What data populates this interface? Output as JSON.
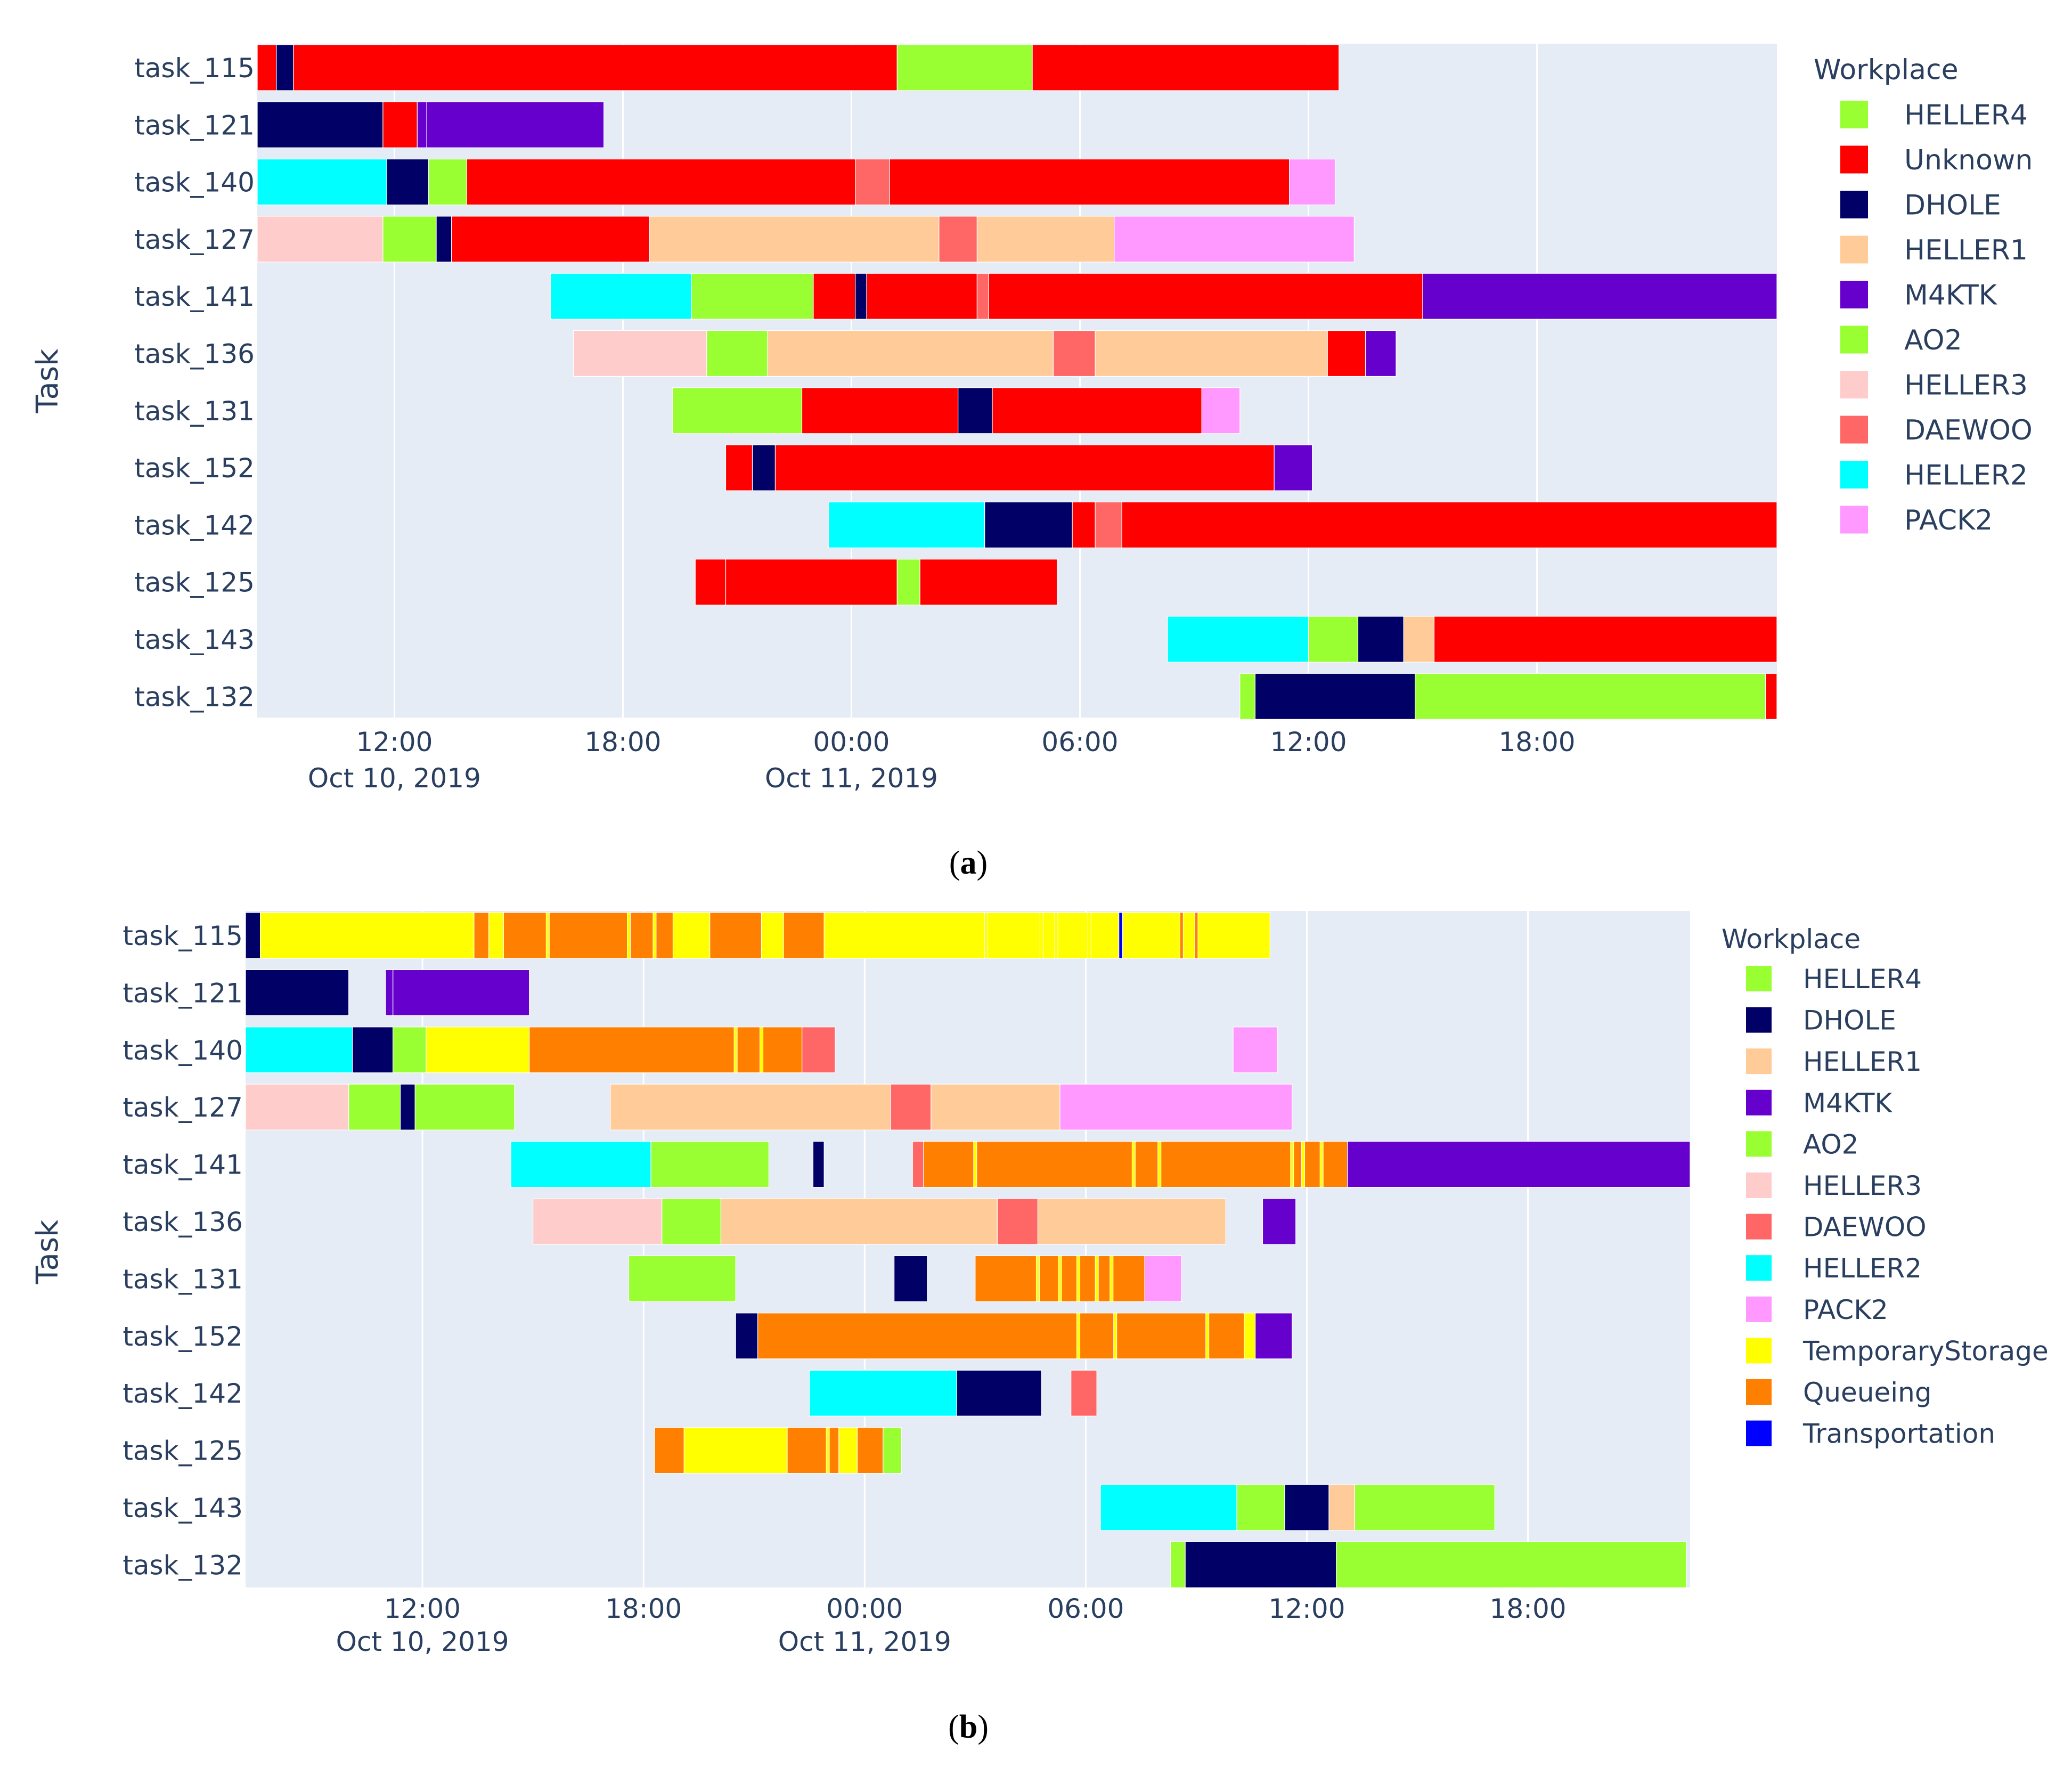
{
  "chart_data": [
    {
      "panel": "a",
      "caption_letter": "a",
      "type": "gantt",
      "ylabel": "Task",
      "legend_title": "Workplace",
      "legend_position": "right",
      "x_axis_ref": "Oct 10, 2019 06:00",
      "x_range_hours": [
        2.4,
        42.3
      ],
      "tick_labels": [
        {
          "hour": 6,
          "label": "12:00",
          "date": "Oct 10, 2019"
        },
        {
          "hour": 12,
          "label": "18:00",
          "date": ""
        },
        {
          "hour": 18,
          "label": "00:00",
          "date": "Oct 11, 2019"
        },
        {
          "hour": 24,
          "label": "06:00",
          "date": ""
        },
        {
          "hour": 30,
          "label": "12:00",
          "date": ""
        },
        {
          "hour": 36,
          "label": "18:00",
          "date": ""
        }
      ],
      "categories": [
        "task_115",
        "task_121",
        "task_140",
        "task_127",
        "task_141",
        "task_136",
        "task_131",
        "task_152",
        "task_142",
        "task_125",
        "task_143",
        "task_132"
      ],
      "legend": [
        {
          "name": "HELLER4",
          "color": "#99ff33"
        },
        {
          "name": "Unknown",
          "color": "#ff0000"
        },
        {
          "name": "DHOLE",
          "color": "#000066"
        },
        {
          "name": "HELLER1",
          "color": "#ffcc99"
        },
        {
          "name": "M4KTK",
          "color": "#6600cc"
        },
        {
          "name": "AO2",
          "color": "#99ff33"
        },
        {
          "name": "HELLER3",
          "color": "#ffcccc"
        },
        {
          "name": "DAEWOO",
          "color": "#ff6666"
        },
        {
          "name": "HELLER2",
          "color": "#00ffff"
        },
        {
          "name": "PACK2",
          "color": "#ff99ff"
        }
      ],
      "segments": {
        "task_115": [
          [
            2.4,
            2.9,
            "Unknown"
          ],
          [
            2.9,
            3.35,
            "DHOLE"
          ],
          [
            3.35,
            19.2,
            "Unknown"
          ],
          [
            19.2,
            22.75,
            "AO2"
          ],
          [
            22.75,
            30.8,
            "Unknown"
          ]
        ],
        "task_121": [
          [
            2.4,
            5.7,
            "DHOLE"
          ],
          [
            5.7,
            6.6,
            "Unknown"
          ],
          [
            6.6,
            6.85,
            "M4KTK"
          ],
          [
            6.85,
            11.5,
            "M4KTK"
          ]
        ],
        "task_140": [
          [
            2.4,
            5.8,
            "HELLER2"
          ],
          [
            5.8,
            6.9,
            "DHOLE"
          ],
          [
            6.9,
            7.9,
            "AO2"
          ],
          [
            7.9,
            18.1,
            "Unknown"
          ],
          [
            18.1,
            19.0,
            "DAEWOO"
          ],
          [
            19.0,
            29.5,
            "Unknown"
          ],
          [
            29.5,
            30.7,
            "PACK2"
          ]
        ],
        "task_127": [
          [
            2.4,
            5.7,
            "HELLER3"
          ],
          [
            5.7,
            7.1,
            "AO2"
          ],
          [
            7.1,
            7.5,
            "DHOLE"
          ],
          [
            7.5,
            12.7,
            "Unknown"
          ],
          [
            12.7,
            20.3,
            "HELLER1"
          ],
          [
            20.3,
            21.3,
            "DAEWOO"
          ],
          [
            21.3,
            24.9,
            "HELLER1"
          ],
          [
            24.9,
            31.2,
            "PACK2"
          ]
        ],
        "task_141": [
          [
            10.1,
            13.8,
            "HELLER2"
          ],
          [
            13.8,
            17.0,
            "AO2"
          ],
          [
            17.0,
            18.1,
            "Unknown"
          ],
          [
            18.1,
            18.4,
            "DHOLE"
          ],
          [
            18.4,
            21.3,
            "Unknown"
          ],
          [
            21.3,
            21.6,
            "DAEWOO"
          ],
          [
            21.6,
            33.0,
            "Unknown"
          ],
          [
            33.0,
            42.3,
            "M4KTK"
          ]
        ],
        "task_136": [
          [
            10.7,
            14.2,
            "HELLER3"
          ],
          [
            14.2,
            15.8,
            "AO2"
          ],
          [
            15.8,
            23.3,
            "HELLER1"
          ],
          [
            23.3,
            24.4,
            "DAEWOO"
          ],
          [
            24.4,
            30.5,
            "HELLER1"
          ],
          [
            30.5,
            31.5,
            "Unknown"
          ],
          [
            31.5,
            32.3,
            "M4KTK"
          ]
        ],
        "task_131": [
          [
            13.3,
            16.7,
            "AO2"
          ],
          [
            16.7,
            20.8,
            "Unknown"
          ],
          [
            20.8,
            21.7,
            "DHOLE"
          ],
          [
            21.7,
            27.2,
            "Unknown"
          ],
          [
            27.2,
            28.2,
            "PACK2"
          ]
        ],
        "task_152": [
          [
            14.7,
            15.4,
            "Unknown"
          ],
          [
            15.4,
            16.0,
            "DHOLE"
          ],
          [
            16.0,
            29.1,
            "Unknown"
          ],
          [
            29.1,
            30.1,
            "M4KTK"
          ]
        ],
        "task_142": [
          [
            17.4,
            21.5,
            "HELLER2"
          ],
          [
            21.5,
            23.8,
            "DHOLE"
          ],
          [
            23.8,
            24.4,
            "Unknown"
          ],
          [
            24.4,
            25.1,
            "DAEWOO"
          ],
          [
            25.1,
            42.3,
            "Unknown"
          ]
        ],
        "task_125": [
          [
            13.9,
            14.7,
            "Unknown"
          ],
          [
            14.7,
            19.2,
            "Unknown"
          ],
          [
            19.2,
            19.8,
            "AO2"
          ],
          [
            19.8,
            23.4,
            "Unknown"
          ]
        ],
        "task_143": [
          [
            26.3,
            30.0,
            "HELLER2"
          ],
          [
            30.0,
            31.3,
            "AO2"
          ],
          [
            31.3,
            32.5,
            "DHOLE"
          ],
          [
            32.5,
            33.3,
            "HELLER1"
          ],
          [
            33.3,
            42.3,
            "Unknown"
          ]
        ],
        "task_132": [
          [
            28.2,
            28.6,
            "AO2"
          ],
          [
            28.6,
            32.8,
            "DHOLE"
          ],
          [
            32.8,
            42.0,
            "AO2"
          ],
          [
            42.0,
            42.3,
            "Unknown"
          ]
        ]
      }
    },
    {
      "panel": "b",
      "caption_letter": "b",
      "type": "gantt",
      "ylabel": "Task",
      "legend_title": "Workplace",
      "legend_position": "right",
      "x_axis_ref": "Oct 10, 2019 06:00",
      "x_range_hours": [
        1.2,
        40.4
      ],
      "tick_labels": [
        {
          "hour": 6,
          "label": "12:00",
          "date": "Oct 10, 2019"
        },
        {
          "hour": 12,
          "label": "18:00",
          "date": ""
        },
        {
          "hour": 18,
          "label": "00:00",
          "date": "Oct 11, 2019"
        },
        {
          "hour": 24,
          "label": "06:00",
          "date": ""
        },
        {
          "hour": 30,
          "label": "12:00",
          "date": ""
        },
        {
          "hour": 36,
          "label": "18:00",
          "date": ""
        }
      ],
      "categories": [
        "task_115",
        "task_121",
        "task_140",
        "task_127",
        "task_141",
        "task_136",
        "task_131",
        "task_152",
        "task_142",
        "task_125",
        "task_143",
        "task_132"
      ],
      "legend": [
        {
          "name": "HELLER4",
          "color": "#99ff33"
        },
        {
          "name": "DHOLE",
          "color": "#000066"
        },
        {
          "name": "HELLER1",
          "color": "#ffcc99"
        },
        {
          "name": "M4KTK",
          "color": "#6600cc"
        },
        {
          "name": "AO2",
          "color": "#99ff33"
        },
        {
          "name": "HELLER3",
          "color": "#ffcccc"
        },
        {
          "name": "DAEWOO",
          "color": "#ff6666"
        },
        {
          "name": "HELLER2",
          "color": "#00ffff"
        },
        {
          "name": "PACK2",
          "color": "#ff99ff"
        },
        {
          "name": "TemporaryStorage",
          "color": "#ffff00"
        },
        {
          "name": "Queueing",
          "color": "#ff8000"
        },
        {
          "name": "Transportation",
          "color": "#0000ff"
        }
      ],
      "segments": {
        "task_115": [
          [
            1.2,
            1.6,
            "DHOLE"
          ],
          [
            1.6,
            7.4,
            "TemporaryStorage"
          ],
          [
            7.4,
            7.8,
            "Queueing"
          ],
          [
            7.8,
            8.2,
            "TemporaryStorage"
          ],
          [
            8.2,
            12.8,
            "Queueing"
          ],
          [
            12.8,
            13.8,
            "TemporaryStorage"
          ],
          [
            13.8,
            15.2,
            "Queueing"
          ],
          [
            15.2,
            15.8,
            "TemporaryStorage"
          ],
          [
            15.8,
            16.9,
            "Queueing"
          ],
          [
            16.9,
            24.9,
            "TemporaryStorage"
          ],
          [
            24.9,
            25.0,
            "Transportation"
          ],
          [
            25.0,
            29.0,
            "TemporaryStorage"
          ]
        ],
        "task_121": [
          [
            1.2,
            4.0,
            "DHOLE"
          ],
          [
            5.0,
            5.2,
            "M4KTK"
          ],
          [
            5.2,
            8.9,
            "M4KTK"
          ]
        ],
        "task_140": [
          [
            1.2,
            4.1,
            "HELLER2"
          ],
          [
            4.1,
            5.2,
            "DHOLE"
          ],
          [
            5.2,
            6.1,
            "AO2"
          ],
          [
            6.1,
            8.9,
            "TemporaryStorage"
          ],
          [
            8.9,
            16.3,
            "Queueing"
          ],
          [
            16.3,
            17.2,
            "DAEWOO"
          ],
          [
            28.0,
            29.2,
            "PACK2"
          ]
        ],
        "task_127": [
          [
            1.2,
            4.0,
            "HELLER3"
          ],
          [
            4.0,
            5.4,
            "AO2"
          ],
          [
            5.4,
            5.8,
            "DHOLE"
          ],
          [
            5.8,
            8.5,
            "AO2"
          ],
          [
            11.1,
            18.7,
            "HELLER1"
          ],
          [
            18.7,
            19.8,
            "DAEWOO"
          ],
          [
            19.8,
            23.3,
            "HELLER1"
          ],
          [
            23.3,
            29.6,
            "PACK2"
          ]
        ],
        "task_141": [
          [
            8.4,
            12.2,
            "HELLER2"
          ],
          [
            12.2,
            15.4,
            "AO2"
          ],
          [
            16.6,
            16.9,
            "DHOLE"
          ],
          [
            19.3,
            19.6,
            "DAEWOO"
          ],
          [
            19.6,
            31.1,
            "Queueing"
          ],
          [
            31.1,
            40.4,
            "M4KTK"
          ]
        ],
        "task_136": [
          [
            9.0,
            12.5,
            "HELLER3"
          ],
          [
            12.5,
            14.1,
            "AO2"
          ],
          [
            14.1,
            21.6,
            "HELLER1"
          ],
          [
            21.6,
            22.7,
            "DAEWOO"
          ],
          [
            22.7,
            27.8,
            "HELLER1"
          ],
          [
            28.8,
            29.7,
            "M4KTK"
          ]
        ],
        "task_131": [
          [
            11.6,
            14.5,
            "AO2"
          ],
          [
            18.8,
            19.7,
            "DHOLE"
          ],
          [
            21.0,
            25.6,
            "Queueing"
          ],
          [
            25.6,
            26.6,
            "PACK2"
          ]
        ],
        "task_152": [
          [
            14.5,
            15.1,
            "DHOLE"
          ],
          [
            15.1,
            28.3,
            "Queueing"
          ],
          [
            28.3,
            28.6,
            "TemporaryStorage"
          ],
          [
            28.6,
            29.6,
            "M4KTK"
          ]
        ],
        "task_142": [
          [
            16.5,
            20.5,
            "HELLER2"
          ],
          [
            20.5,
            22.8,
            "DHOLE"
          ],
          [
            23.6,
            24.3,
            "DAEWOO"
          ]
        ],
        "task_125": [
          [
            12.3,
            13.1,
            "Queueing"
          ],
          [
            13.1,
            15.9,
            "TemporaryStorage"
          ],
          [
            15.9,
            17.3,
            "Queueing"
          ],
          [
            17.3,
            17.8,
            "TemporaryStorage"
          ],
          [
            17.8,
            18.5,
            "Queueing"
          ],
          [
            18.5,
            19.0,
            "AO2"
          ]
        ],
        "task_143": [
          [
            24.4,
            28.1,
            "HELLER2"
          ],
          [
            28.1,
            29.4,
            "AO2"
          ],
          [
            29.4,
            30.6,
            "DHOLE"
          ],
          [
            30.6,
            31.3,
            "HELLER1"
          ],
          [
            31.3,
            35.1,
            "AO2"
          ]
        ],
        "task_132": [
          [
            26.3,
            26.7,
            "AO2"
          ],
          [
            26.7,
            30.8,
            "DHOLE"
          ],
          [
            30.8,
            40.3,
            "AO2"
          ]
        ]
      },
      "stripes": {
        "task_115": [
          [
            11.6,
            "TemporaryStorage"
          ],
          [
            12.3,
            "TemporaryStorage"
          ],
          [
            21.3,
            "TemporaryStorage"
          ],
          [
            22.8,
            "TemporaryStorage"
          ],
          [
            23.2,
            "TemporaryStorage"
          ],
          [
            24.1,
            "TemporaryStorage"
          ],
          [
            26.6,
            "Queueing"
          ],
          [
            27.0,
            "Queueing"
          ],
          [
            9.4,
            "TemporaryStorage"
          ]
        ],
        "task_140": [
          [
            14.5,
            "TemporaryStorage"
          ],
          [
            15.2,
            "TemporaryStorage"
          ]
        ],
        "task_141": [
          [
            21.0,
            "TemporaryStorage"
          ],
          [
            25.3,
            "TemporaryStorage"
          ],
          [
            26.0,
            "TemporaryStorage"
          ],
          [
            29.6,
            "TemporaryStorage"
          ],
          [
            29.9,
            "TemporaryStorage"
          ],
          [
            30.4,
            "TemporaryStorage"
          ]
        ],
        "task_131": [
          [
            22.7,
            "TemporaryStorage"
          ],
          [
            23.3,
            "TemporaryStorage"
          ],
          [
            23.8,
            "TemporaryStorage"
          ],
          [
            24.3,
            "TemporaryStorage"
          ],
          [
            24.7,
            "TemporaryStorage"
          ]
        ],
        "task_152": [
          [
            23.8,
            "TemporaryStorage"
          ],
          [
            24.8,
            "TemporaryStorage"
          ],
          [
            27.3,
            "TemporaryStorage"
          ]
        ],
        "task_125": [
          [
            17.0,
            "TemporaryStorage"
          ]
        ]
      }
    }
  ]
}
